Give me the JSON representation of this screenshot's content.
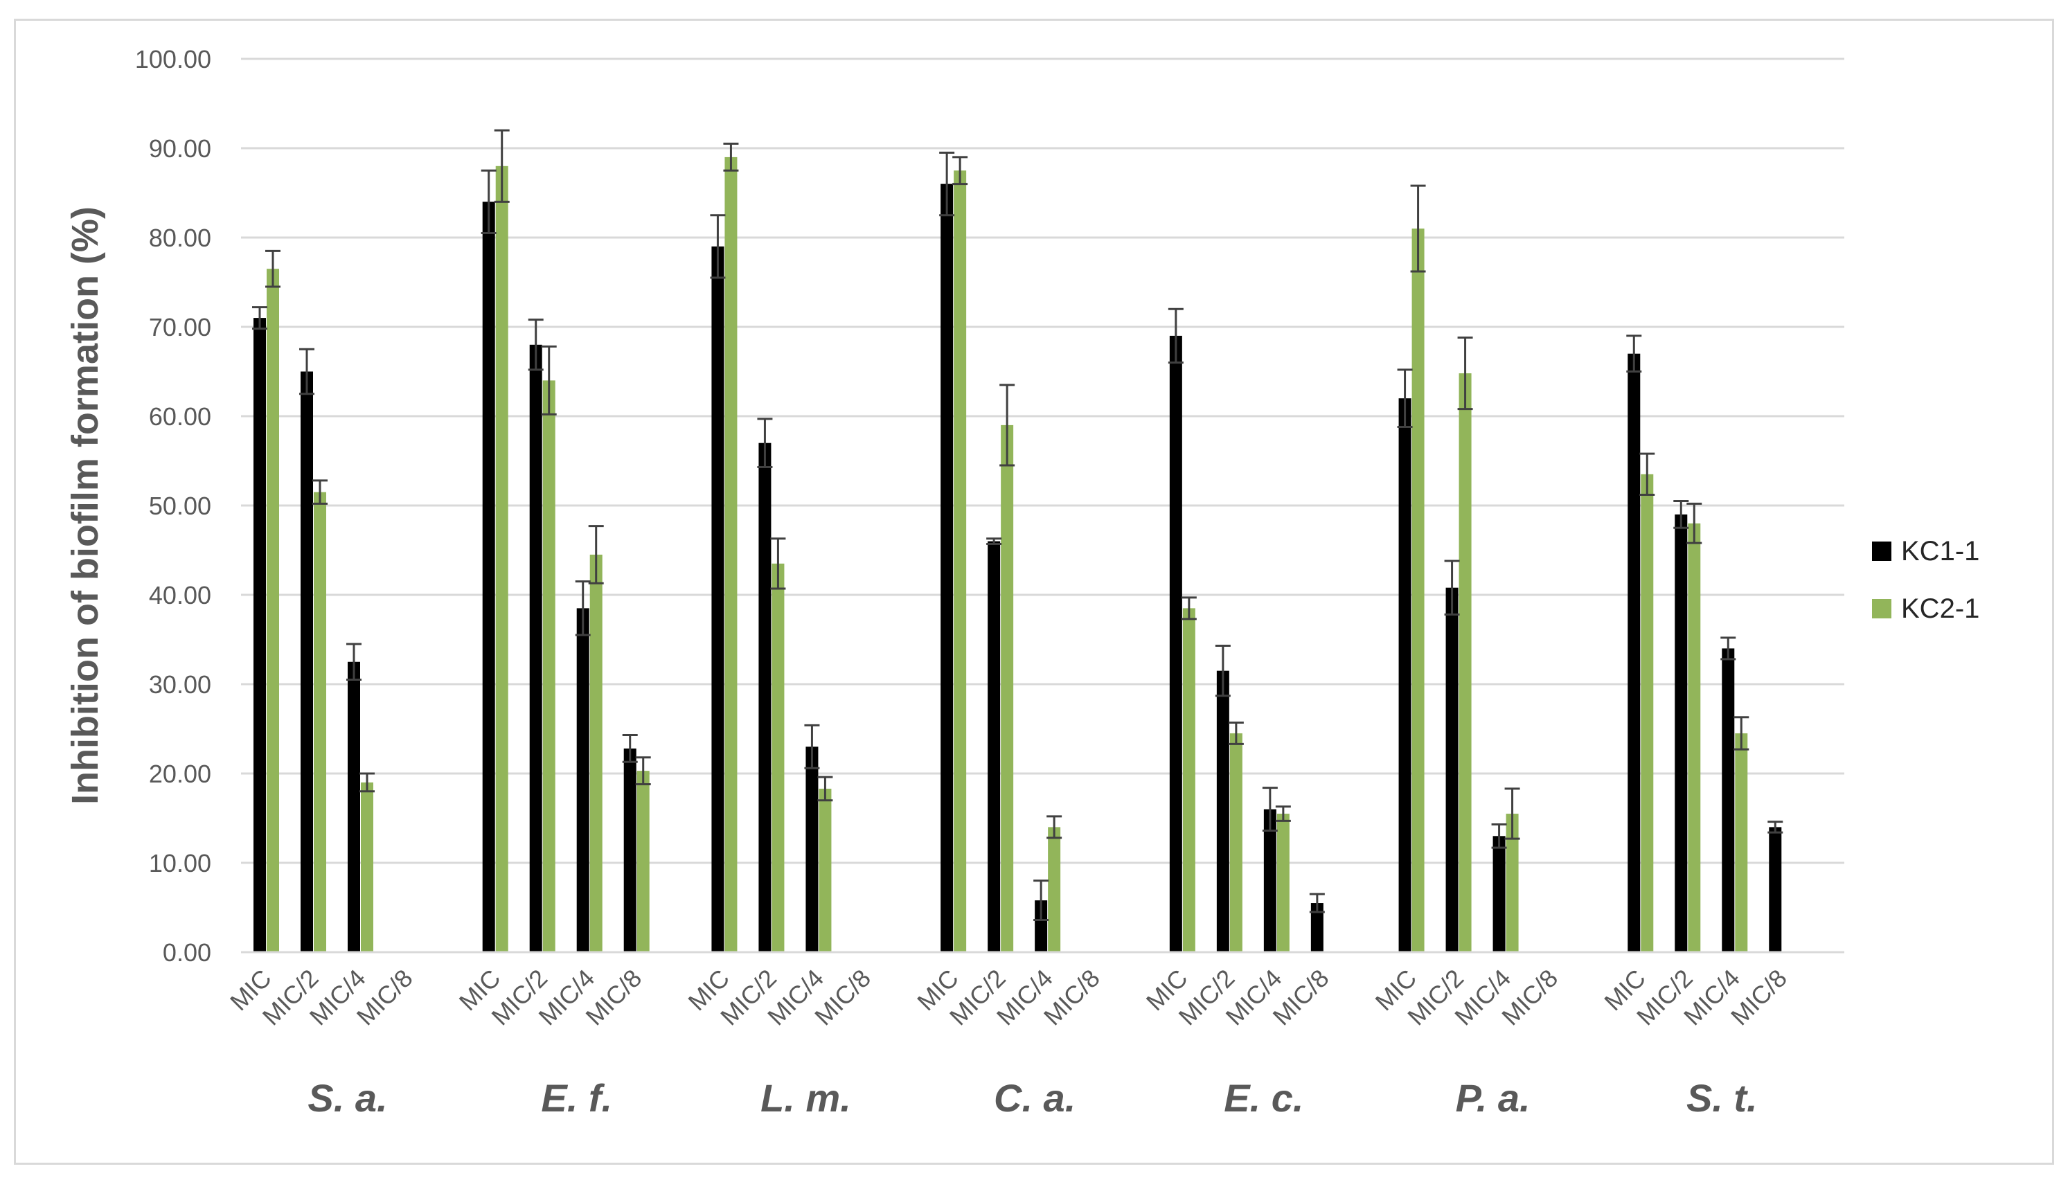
{
  "chart_data": {
    "type": "bar",
    "title": "",
    "ylabel": "Inhibition of biofilm formation (%)",
    "xlabel": "",
    "ylim": [
      0,
      100
    ],
    "yticks": [
      "0.00",
      "10.00",
      "20.00",
      "30.00",
      "40.00",
      "50.00",
      "60.00",
      "70.00",
      "80.00",
      "90.00",
      "100.00"
    ],
    "grid": true,
    "legend_position": "right",
    "groups": [
      "S. a.",
      "E. f.",
      "L. m.",
      "C. a.",
      "E. c.",
      "P. a.",
      "S. t."
    ],
    "categories": [
      "MIC",
      "MIC/2",
      "MIC/4",
      "MIC/8"
    ],
    "series": [
      {
        "name": "KC1-1",
        "color": "#000000",
        "values": [
          [
            71.0,
            65.0,
            32.5,
            null
          ],
          [
            84.0,
            68.0,
            38.5,
            22.8
          ],
          [
            79.0,
            57.0,
            23.0,
            null
          ],
          [
            86.0,
            46.0,
            5.8,
            null
          ],
          [
            69.0,
            31.5,
            16.0,
            5.5
          ],
          [
            62.0,
            40.8,
            13.0,
            null
          ],
          [
            67.0,
            49.0,
            34.0,
            14.0
          ]
        ],
        "errors": [
          [
            1.2,
            2.5,
            2.0,
            null
          ],
          [
            3.5,
            2.8,
            3.0,
            1.5
          ],
          [
            3.5,
            2.7,
            2.4,
            null
          ],
          [
            3.5,
            0.3,
            2.2,
            null
          ],
          [
            3.0,
            2.8,
            2.4,
            1.0
          ],
          [
            3.2,
            3.0,
            1.3,
            null
          ],
          [
            2.0,
            1.5,
            1.2,
            0.6
          ]
        ]
      },
      {
        "name": "KC2-1",
        "color": "#92b55a",
        "values": [
          [
            76.5,
            51.5,
            19.0,
            null
          ],
          [
            88.0,
            64.0,
            44.5,
            20.3
          ],
          [
            89.0,
            43.5,
            18.3,
            null
          ],
          [
            87.5,
            59.0,
            14.0,
            null
          ],
          [
            38.5,
            24.5,
            15.5,
            null
          ],
          [
            81.0,
            64.8,
            15.5,
            null
          ],
          [
            53.5,
            48.0,
            24.5,
            null
          ]
        ],
        "errors": [
          [
            2.0,
            1.3,
            1.0,
            null
          ],
          [
            4.0,
            3.8,
            3.2,
            1.5
          ],
          [
            1.5,
            2.8,
            1.3,
            null
          ],
          [
            1.5,
            4.5,
            1.2,
            null
          ],
          [
            1.2,
            1.2,
            0.8,
            null
          ],
          [
            4.8,
            4.0,
            2.8,
            null
          ],
          [
            2.3,
            2.2,
            1.8,
            null
          ]
        ]
      }
    ]
  }
}
